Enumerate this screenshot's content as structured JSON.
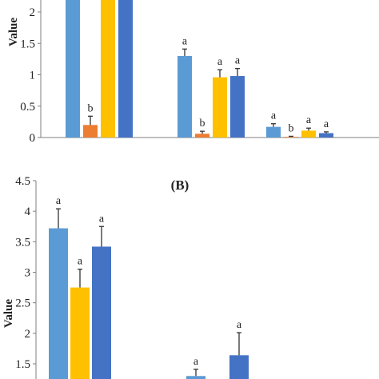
{
  "chart_data": [
    {
      "type": "bar",
      "panel_label": "",
      "title": "",
      "xlabel": "",
      "ylabel": "Value",
      "ylim": [
        0,
        2.2
      ],
      "yticks": [
        "0",
        "0.5",
        "1",
        "1.5",
        "2"
      ],
      "grid": false,
      "categories": [
        "",
        "",
        ""
      ],
      "series": [
        {
          "color": "#5B9BD5",
          "values": [
            2.2,
            1.3,
            0.17
          ],
          "errors": [
            0,
            0.11,
            0.05
          ],
          "labels": [
            "",
            "a",
            "a"
          ]
        },
        {
          "color": "#ED7D31",
          "values": [
            0.2,
            0.06,
            0.01
          ],
          "errors": [
            0.14,
            0.04,
            0.01
          ],
          "labels": [
            "b",
            "b",
            "b"
          ]
        },
        {
          "color": "#FFC000",
          "values": [
            2.2,
            0.96,
            0.11
          ],
          "errors": [
            0,
            0.12,
            0.04
          ],
          "labels": [
            "",
            "a",
            "a"
          ]
        },
        {
          "color": "#4472C4",
          "values": [
            2.2,
            0.98,
            0.07
          ],
          "errors": [
            0,
            0.12,
            0.02
          ],
          "labels": [
            "",
            "a",
            "a"
          ]
        }
      ]
    },
    {
      "type": "bar",
      "panel_label": "(B)",
      "title": "",
      "xlabel": "",
      "ylabel": "Value",
      "ylim": [
        1.4,
        4.5
      ],
      "yticks": [
        "1.5",
        "2",
        "2.5",
        "3",
        "3.5",
        "4",
        "4.5"
      ],
      "grid": false,
      "categories": [
        "",
        ""
      ],
      "series": [
        {
          "color": "#5B9BD5",
          "values": [
            3.72,
            1.3
          ],
          "errors": [
            0.32,
            0.11
          ],
          "labels": [
            "a",
            "a"
          ]
        },
        {
          "color": "#FFC000",
          "values": [
            2.75,
            null
          ],
          "errors": [
            0.3,
            null
          ],
          "labels": [
            "a",
            ""
          ]
        },
        {
          "color": "#4472C4",
          "values": [
            3.42,
            1.64
          ],
          "errors": [
            0.33,
            0.37
          ],
          "labels": [
            "a",
            "a"
          ]
        }
      ]
    }
  ]
}
